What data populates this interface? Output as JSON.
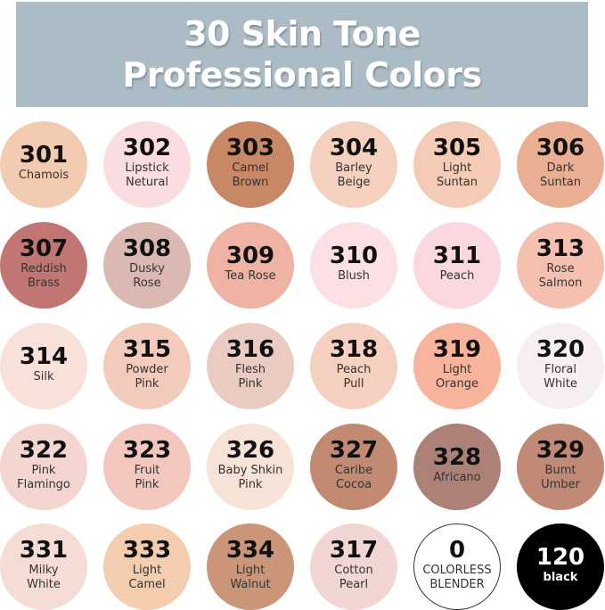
{
  "header": {
    "line1": "30 Skin Tone",
    "line2": "Professional Colors"
  },
  "colors": [
    {
      "code": "301",
      "name": "Chamois",
      "color": "#f2cbb1"
    },
    {
      "code": "302",
      "name": "Lipstick\nNetural",
      "color": "#f9dde0"
    },
    {
      "code": "303",
      "name": "Camel\nBrown",
      "color": "#c98865"
    },
    {
      "code": "304",
      "name": "Barley\nBeige",
      "color": "#f3d1be"
    },
    {
      "code": "305",
      "name": "Light\nSuntan",
      "color": "#f5cbb5"
    },
    {
      "code": "306",
      "name": "Dark\nSuntan",
      "color": "#eaaf93"
    },
    {
      "code": "307",
      "name": "Reddish\nBrass",
      "color": "#c17673"
    },
    {
      "code": "308",
      "name": "Dusky\nRose",
      "color": "#dbb9b2"
    },
    {
      "code": "309",
      "name": "Tea Rose",
      "color": "#eeb3a2"
    },
    {
      "code": "310",
      "name": "Blush",
      "color": "#fde0e4"
    },
    {
      "code": "311",
      "name": "Peach",
      "color": "#fbd8df"
    },
    {
      "code": "313",
      "name": "Rose\nSalmon",
      "color": "#f5c0b0"
    },
    {
      "code": "314",
      "name": "Silk",
      "color": "#f8e1d9"
    },
    {
      "code": "315",
      "name": "Powder\nPink",
      "color": "#f3cbbd"
    },
    {
      "code": "316",
      "name": "Flesh\nPink",
      "color": "#eacbc2"
    },
    {
      "code": "318",
      "name": "Peach\nPull",
      "color": "#f5cfbf"
    },
    {
      "code": "319",
      "name": "Light\nOrange",
      "color": "#f8b39c"
    },
    {
      "code": "320",
      "name": "Floral\nWhite",
      "color": "#f7eef0"
    },
    {
      "code": "322",
      "name": "Pink\nFlamingo",
      "color": "#f4d5d0"
    },
    {
      "code": "323",
      "name": "Fruit\nPink",
      "color": "#f3c7bd"
    },
    {
      "code": "326",
      "name": "Baby Shkin\nPink",
      "color": "#f7e3d6"
    },
    {
      "code": "327",
      "name": "Caribe\nCocoa",
      "color": "#c28b71"
    },
    {
      "code": "328",
      "name": "Africano",
      "color": "#ad8078"
    },
    {
      "code": "329",
      "name": "Bumt\nUmber",
      "color": "#c08a77"
    },
    {
      "code": "331",
      "name": "Milky\nWhite",
      "color": "#f5ddd6"
    },
    {
      "code": "333",
      "name": "Light\nCamel",
      "color": "#f3cdad"
    },
    {
      "code": "334",
      "name": "Light\nWalnut",
      "color": "#cb9677"
    },
    {
      "code": "317",
      "name": "Cotton\nPearl",
      "color": "#f2d6d3"
    },
    {
      "code": "0",
      "name": "COLORLESS\nBLENDER",
      "color": "#ffffff",
      "outlined": true
    },
    {
      "code": "120",
      "name": "black",
      "color": "#000000",
      "dark": true
    }
  ]
}
